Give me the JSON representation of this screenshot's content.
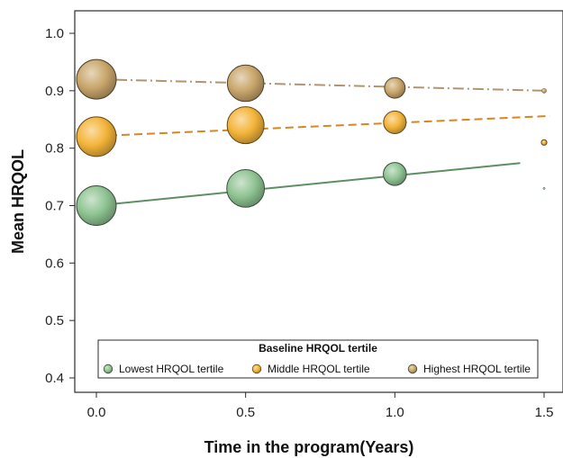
{
  "chart_data": {
    "type": "scatter",
    "title": "",
    "xlabel": "Time in the program(Years)",
    "ylabel": "Mean HRQOL",
    "xlim": [
      -0.1,
      1.55
    ],
    "ylim": [
      0.37,
      1.04
    ],
    "xticks": [
      0.0,
      0.5,
      1.0,
      1.5
    ],
    "xtick_labels": [
      "0.0",
      "0.5",
      "1.0",
      "1.5"
    ],
    "yticks": [
      0.4,
      0.5,
      0.6,
      0.7,
      0.8,
      0.9,
      1.0
    ],
    "ytick_labels": [
      "0.4",
      "0.5",
      "0.6",
      "0.7",
      "0.8",
      "0.9",
      "1.0"
    ],
    "grid": false,
    "legend": {
      "title": "Baseline HRQOL tertile",
      "placement": "bottom"
    },
    "series": [
      {
        "name": "Lowest HRQOL tertile",
        "color": "#8fc493",
        "line_color": "#5e8f63",
        "line_style": "solid",
        "x": [
          0.0,
          0.5,
          1.0,
          1.5
        ],
        "y": [
          0.7,
          0.73,
          0.755,
          0.73
        ],
        "relative_size": [
          1.0,
          0.95,
          0.58,
          0.05
        ],
        "trend": {
          "x": [
            0.0,
            1.42
          ],
          "y": [
            0.7,
            0.774
          ]
        }
      },
      {
        "name": "Middle HRQOL tertile",
        "color": "#f4b43a",
        "line_color": "#d9861e",
        "line_style": "dashed",
        "x": [
          0.0,
          0.5,
          1.0,
          1.5
        ],
        "y": [
          0.82,
          0.84,
          0.845,
          0.81
        ],
        "relative_size": [
          1.0,
          0.93,
          0.57,
          0.14
        ],
        "trend": {
          "x": [
            0.0,
            1.52
          ],
          "y": [
            0.821,
            0.856
          ]
        }
      },
      {
        "name": "Highest HRQOL tertile",
        "color": "#c9a66b",
        "line_color": "#b09570",
        "line_style": "dashdot",
        "x": [
          0.0,
          0.5,
          1.0,
          1.5
        ],
        "y": [
          0.92,
          0.913,
          0.905,
          0.9
        ],
        "relative_size": [
          1.0,
          0.92,
          0.52,
          0.12
        ],
        "trend": {
          "x": [
            0.0,
            1.5
          ],
          "y": [
            0.92,
            0.9
          ]
        }
      }
    ]
  }
}
